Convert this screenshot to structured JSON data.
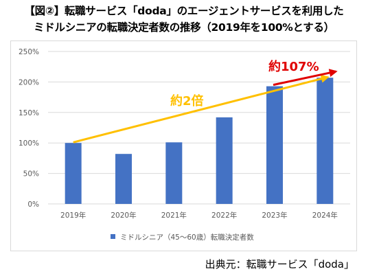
{
  "header": {
    "title_line1": "【図②】転職サービス「doda」のエージェントサービスを利用した",
    "title_line2": "ミドルシニアの転職決定者数の推移（2019年を100%とする）"
  },
  "source": "出典元：転職サービス「doda」",
  "colors": {
    "bar": "#4472c4",
    "trend_long": "#ffc000",
    "trend_short": "#e00000",
    "grid": "#d9d9d9",
    "axis_text": "#595959"
  },
  "chart_data": {
    "type": "bar",
    "categories": [
      "2019年",
      "2020年",
      "2021年",
      "2022年",
      "2023年",
      "2024年"
    ],
    "series": [
      {
        "name": "ミドルシニア（45〜60歳）転職決定者数",
        "values": [
          100,
          82,
          101,
          142,
          193,
          207
        ]
      }
    ],
    "ylim": [
      0,
      250
    ],
    "yticks": [
      0,
      50,
      100,
      150,
      200,
      250
    ],
    "ytick_labels": [
      "0%",
      "50%",
      "100%",
      "150%",
      "200%",
      "250%"
    ],
    "grid": true,
    "legend": "bottom",
    "annotations": [
      {
        "text": "約2倍",
        "from_category": "2019年",
        "from_value": 101,
        "to_category": "2024年",
        "to_value": 208
      },
      {
        "text": "約107%",
        "from_category": "2023年",
        "from_value": 193,
        "to_category": "2024年",
        "to_value": 215
      }
    ]
  }
}
